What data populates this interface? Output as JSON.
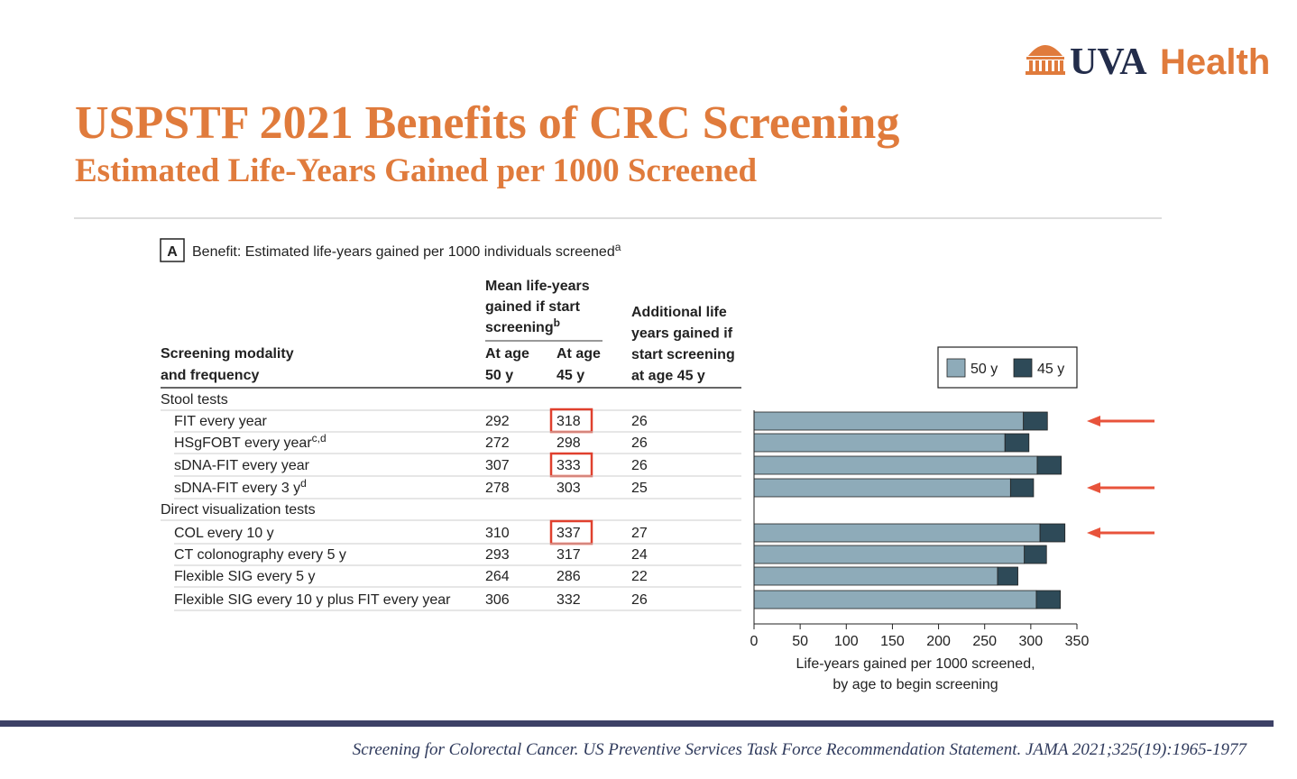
{
  "header": {
    "logo": [
      "UVA",
      "Health"
    ],
    "title": "USPSTF 2021 Benefits of CRC Screening",
    "subtitle": "Estimated Life-Years Gained per 1000 Screened"
  },
  "panel": {
    "label": "A",
    "caption": {
      "text": "Benefit: Estimated life-years gained per 1000 individuals screened",
      "sup": "a"
    }
  },
  "table": {
    "columns": {
      "modality": [
        "Screening modality",
        "and frequency"
      ],
      "mean": [
        {
          "text": "Mean life-years"
        },
        {
          "text": "gained if start"
        },
        {
          "text": "screening",
          "sup": "b"
        }
      ],
      "age50": [
        "At age",
        "50 y"
      ],
      "age45": [
        "At age",
        "45 y"
      ],
      "additional": [
        "Additional life",
        "years gained if",
        "start screening",
        "at age 45 y"
      ]
    },
    "rows": [
      {
        "group": "Stool tests"
      },
      {
        "name": {
          "text": "FIT every year"
        },
        "values": [
          292,
          318,
          26
        ]
      },
      {
        "name": {
          "text": "HSgFOBT every year",
          "sup": "c,d"
        },
        "values": [
          272,
          298,
          26
        ]
      },
      {
        "name": {
          "text": "sDNA-FIT every year"
        },
        "values": [
          307,
          333,
          26
        ]
      },
      {
        "name": {
          "text": "sDNA-FIT every 3 y",
          "sup": "d"
        },
        "values": [
          278,
          303,
          25
        ]
      },
      {
        "group": "Direct visualization tests"
      },
      {
        "name": {
          "text": "COL every 10 y"
        },
        "values": [
          310,
          337,
          27
        ]
      },
      {
        "name": {
          "text": "CT colonography every 5 y"
        },
        "values": [
          293,
          317,
          24
        ]
      },
      {
        "name": {
          "text": "Flexible SIG every 5 y"
        },
        "values": [
          264,
          286,
          22
        ]
      },
      {
        "name": {
          "text": "Flexible SIG every 10 y plus FIT every year"
        },
        "values": [
          306,
          332,
          26
        ]
      }
    ]
  },
  "chart_data": {
    "type": "stacked_barh",
    "series": [
      {
        "name": "50 y",
        "color": "#8eabb9",
        "values": [
          292,
          272,
          307,
          278,
          310,
          293,
          264,
          306
        ]
      },
      {
        "name": "45 y",
        "color": "#2e4a58",
        "values": [
          26,
          26,
          26,
          25,
          27,
          24,
          22,
          26
        ]
      }
    ],
    "xlim": [
      0,
      350
    ],
    "xticks": [
      0,
      50,
      100,
      150,
      200,
      250,
      300,
      350
    ],
    "xlabel": [
      "Life-years gained per 1000 screened,",
      "by age to begin screening"
    ],
    "legend": "top-right"
  },
  "footer": "Screening for Colorectal Cancer. US Preventive Services Task Force Recommendation Statement. JAMA 2021;325(19):1965-1977"
}
